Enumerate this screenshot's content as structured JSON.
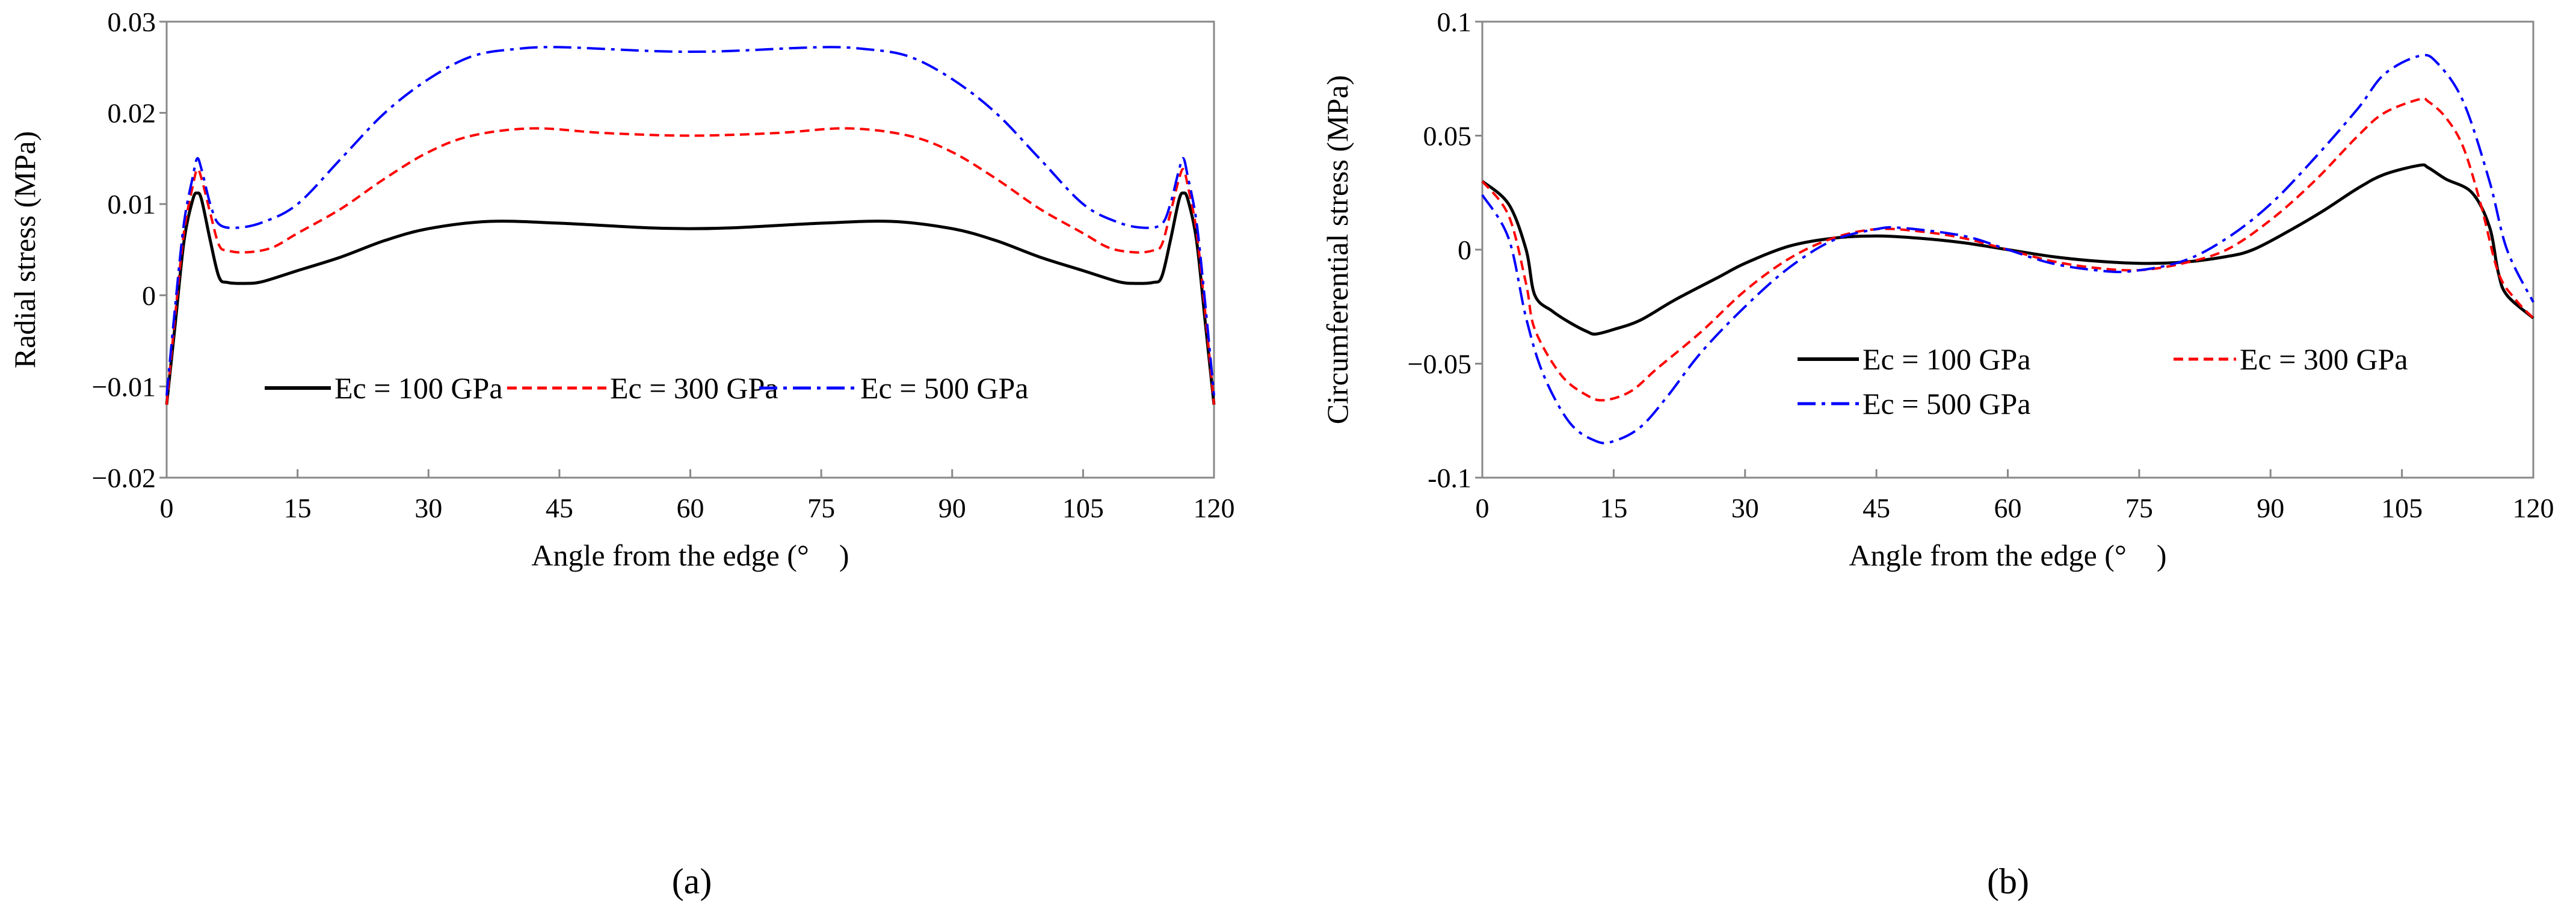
{
  "chart_data": [
    {
      "type": "line",
      "panel_label": "(a)",
      "xlabel": "Angle from the edge (°　)",
      "ylabel": "Radial stress (MPa)",
      "xlim": [
        0,
        120
      ],
      "ylim": [
        -0.02,
        0.03
      ],
      "xticks": [
        "0",
        "15",
        "30",
        "45",
        "60",
        "75",
        "90",
        "105",
        "120"
      ],
      "xtick_values": [
        0,
        15,
        30,
        45,
        60,
        75,
        90,
        105,
        120
      ],
      "yticks": [
        "0.03",
        "0.02",
        "0.01",
        "0",
        "−0.01",
        "−0.02"
      ],
      "ytick_values": [
        0.03,
        0.02,
        0.01,
        0,
        -0.01,
        -0.02
      ],
      "grid": false,
      "legend_placement": "bottom-center, single row",
      "series": [
        {
          "name": "Ec = 100 GPa",
          "color": "#000000",
          "dash": "solid",
          "x": [
            0,
            1,
            2,
            3,
            3.5,
            4,
            5,
            6,
            7,
            9,
            11,
            15,
            20,
            25,
            30,
            37,
            45,
            55,
            60,
            65,
            75,
            83,
            90,
            95,
            100,
            105,
            109,
            111,
            113,
            114,
            115,
            116,
            116.5,
            117,
            118,
            119,
            120
          ],
          "y": [
            -0.012,
            -0.003,
            0.006,
            0.0105,
            0.0112,
            0.0105,
            0.006,
            0.002,
            0.0014,
            0.0013,
            0.0015,
            0.0027,
            0.0042,
            0.006,
            0.0073,
            0.0081,
            0.0079,
            0.0074,
            0.0073,
            0.0074,
            0.0079,
            0.0081,
            0.0073,
            0.006,
            0.0042,
            0.0027,
            0.0015,
            0.0013,
            0.0014,
            0.002,
            0.006,
            0.0105,
            0.0112,
            0.0105,
            0.006,
            -0.003,
            -0.012
          ]
        },
        {
          "name": "Ec = 300 GPa",
          "color": "#ff0000",
          "dash": "dashed",
          "x": [
            0,
            1,
            2,
            3,
            3.5,
            4,
            5,
            6,
            7,
            9,
            12,
            15,
            20,
            25,
            30,
            35,
            42,
            50,
            60,
            70,
            78,
            85,
            90,
            95,
            100,
            105,
            108,
            111,
            113,
            114,
            115,
            116,
            116.5,
            117,
            118,
            119,
            120
          ],
          "y": [
            -0.012,
            -0.002,
            0.007,
            0.012,
            0.0138,
            0.0128,
            0.009,
            0.0055,
            0.0049,
            0.0047,
            0.0052,
            0.0068,
            0.0095,
            0.0128,
            0.0157,
            0.0175,
            0.0183,
            0.0178,
            0.0175,
            0.0178,
            0.0183,
            0.0175,
            0.0157,
            0.0128,
            0.0095,
            0.0068,
            0.0052,
            0.0047,
            0.0049,
            0.0055,
            0.009,
            0.0128,
            0.0138,
            0.012,
            0.007,
            -0.002,
            -0.012
          ]
        },
        {
          "name": "Ec = 500 GPa",
          "color": "#0000ff",
          "dash": "dash-dot",
          "x": [
            0,
            1,
            2,
            3,
            3.5,
            4,
            5,
            6,
            8,
            11,
            15,
            20,
            25,
            30,
            35,
            40,
            45,
            55,
            60,
            65,
            75,
            80,
            85,
            90,
            95,
            100,
            105,
            109,
            112,
            114,
            115,
            116,
            116.5,
            117,
            118,
            119,
            120
          ],
          "y": [
            -0.011,
            -0.001,
            0.008,
            0.013,
            0.015,
            0.0138,
            0.01,
            0.0078,
            0.0074,
            0.008,
            0.01,
            0.015,
            0.02,
            0.0237,
            0.0262,
            0.027,
            0.0272,
            0.0268,
            0.0267,
            0.0268,
            0.0272,
            0.027,
            0.0262,
            0.0237,
            0.02,
            0.015,
            0.01,
            0.008,
            0.0074,
            0.0078,
            0.01,
            0.0138,
            0.015,
            0.013,
            0.008,
            -0.001,
            -0.011
          ]
        }
      ]
    },
    {
      "type": "line",
      "panel_label": "(b)",
      "xlabel": "Angle from the edge (°　)",
      "ylabel": "Circumferential stress (MPa)",
      "xlim": [
        0,
        120
      ],
      "ylim": [
        -0.1,
        0.1
      ],
      "xticks": [
        "0",
        "15",
        "30",
        "45",
        "60",
        "75",
        "90",
        "105",
        "120"
      ],
      "xtick_values": [
        0,
        15,
        30,
        45,
        60,
        75,
        90,
        105,
        120
      ],
      "yticks": [
        "0.1",
        "0.05",
        "0",
        "−0.05",
        "-0.1"
      ],
      "ytick_values": [
        0.1,
        0.05,
        0,
        -0.05,
        -0.1
      ],
      "grid": false,
      "legend_placement": "bottom-center, two rows",
      "series": [
        {
          "name": "Ec = 100 GPa",
          "color": "#000000",
          "dash": "solid",
          "x": [
            0,
            3,
            5,
            6,
            8,
            10,
            12,
            13,
            15,
            18,
            22,
            27,
            30,
            35,
            40,
            45,
            50,
            55,
            60,
            65,
            70,
            75,
            80,
            85,
            88,
            92,
            96,
            100,
            103,
            107,
            108,
            110,
            113,
            115,
            116,
            117,
            120
          ],
          "y": [
            0.03,
            0.02,
            0.0,
            -0.02,
            -0.027,
            -0.032,
            -0.036,
            -0.037,
            -0.035,
            -0.031,
            -0.022,
            -0.012,
            -0.006,
            0.0015,
            0.005,
            0.006,
            0.005,
            0.003,
            0.0,
            -0.003,
            -0.005,
            -0.006,
            -0.0055,
            -0.003,
            0.0,
            0.008,
            0.017,
            0.027,
            0.033,
            0.037,
            0.036,
            0.031,
            0.025,
            0.01,
            -0.01,
            -0.02,
            -0.03
          ]
        },
        {
          "name": "Ec = 300 GPa",
          "color": "#ff0000",
          "dash": "dashed",
          "x": [
            0,
            3,
            5,
            6,
            9,
            12,
            14,
            17,
            20,
            25,
            30,
            35,
            40,
            45,
            50,
            55,
            60,
            65,
            70,
            75,
            80,
            85,
            90,
            95,
            100,
            103,
            107,
            108,
            110,
            112,
            114,
            116,
            118,
            120
          ],
          "y": [
            0.03,
            0.015,
            -0.015,
            -0.035,
            -0.055,
            -0.064,
            -0.066,
            -0.062,
            -0.052,
            -0.036,
            -0.018,
            -0.004,
            0.005,
            0.009,
            0.008,
            0.005,
            0.0,
            -0.005,
            -0.008,
            -0.009,
            -0.006,
            0.0,
            0.013,
            0.03,
            0.05,
            0.06,
            0.066,
            0.065,
            0.058,
            0.045,
            0.02,
            -0.01,
            -0.022,
            -0.03
          ]
        },
        {
          "name": "Ec = 500 GPa",
          "color": "#0000ff",
          "dash": "dash-dot",
          "x": [
            0,
            3,
            5,
            7,
            10,
            13,
            15,
            18,
            21,
            25,
            30,
            35,
            40,
            45,
            48,
            55,
            60,
            65,
            70,
            74,
            80,
            85,
            90,
            95,
            100,
            103,
            107,
            109,
            112,
            115,
            117,
            120
          ],
          "y": [
            0.024,
            0.005,
            -0.03,
            -0.055,
            -0.076,
            -0.084,
            -0.084,
            -0.078,
            -0.065,
            -0.045,
            -0.025,
            -0.008,
            0.004,
            0.009,
            0.0095,
            0.006,
            0.0,
            -0.006,
            -0.009,
            -0.0095,
            -0.005,
            0.005,
            0.02,
            0.04,
            0.062,
            0.077,
            0.085,
            0.082,
            0.065,
            0.03,
            0.0,
            -0.023
          ]
        }
      ]
    }
  ]
}
